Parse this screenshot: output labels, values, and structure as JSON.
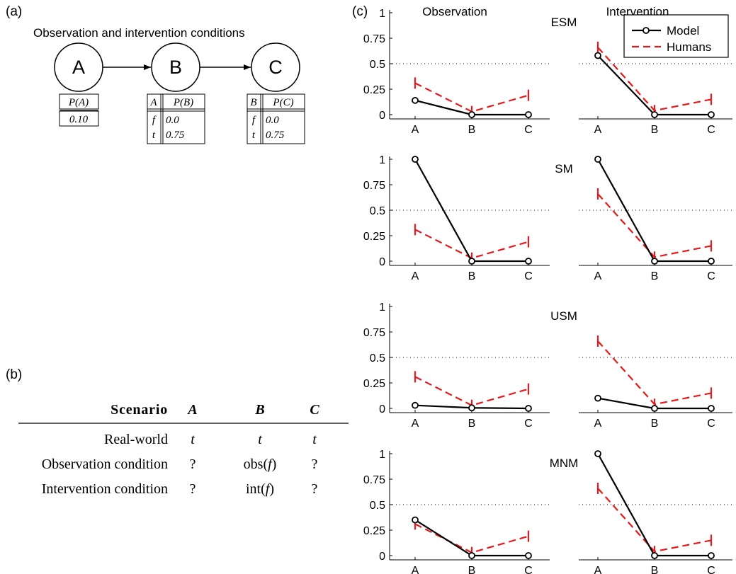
{
  "panels": {
    "a_label": "(a)",
    "b_label": "(b)",
    "c_label": "(c)"
  },
  "network": {
    "title": "Observation and intervention conditions",
    "nodes": [
      "A",
      "B",
      "C"
    ],
    "cpt_A": {
      "header": "P(A)",
      "value": "0.10"
    },
    "cpt_B": {
      "h1": "A",
      "h2": "P(B)",
      "r1a": "f",
      "r1b": "0.0",
      "r2a": "t",
      "r2b": "0.75"
    },
    "cpt_C": {
      "h1": "B",
      "h2": "P(C)",
      "r1a": "f",
      "r1b": "0.0",
      "r2a": "t",
      "r2b": "0.75"
    }
  },
  "scenario_table": {
    "headers": [
      "Scenario",
      "A",
      "B",
      "C"
    ],
    "rows": [
      {
        "name": "Real-world",
        "A": "t",
        "B_pre": "t",
        "B_var": "",
        "B_post": "",
        "C": "t"
      },
      {
        "name": "Observation condition",
        "A": "?",
        "B_pre": "obs(",
        "B_var": "f",
        "B_post": ")",
        "C": "?"
      },
      {
        "name": "Intervention condition",
        "A": "?",
        "B_pre": "int(",
        "B_var": "f",
        "B_post": ")",
        "C": "?"
      }
    ]
  },
  "chart_headers": {
    "observation": "Observation",
    "intervention": "Intervention"
  },
  "legend": {
    "model": "Model",
    "humans": "Humans"
  },
  "colors": {
    "model": "#000000",
    "humans": "#e41a1c"
  },
  "chart_data": [
    {
      "type": "line",
      "title": "ESM",
      "categories": [
        "A",
        "B",
        "C"
      ],
      "yticks": [
        "0",
        "0.25",
        "0.5",
        "0.75",
        "1"
      ],
      "ylim": [
        0,
        1
      ],
      "reference_line": 0.5,
      "observation": {
        "model": [
          0.14,
          0.0,
          0.0
        ],
        "humans": [
          0.31,
          0.03,
          0.19
        ]
      },
      "intervention": {
        "model": [
          0.58,
          0.0,
          0.0
        ],
        "humans": [
          0.66,
          0.04,
          0.15
        ]
      }
    },
    {
      "type": "line",
      "title": "SM",
      "categories": [
        "A",
        "B",
        "C"
      ],
      "yticks": [
        "0",
        "0.25",
        "0.5",
        "0.75",
        "1"
      ],
      "ylim": [
        0,
        1
      ],
      "reference_line": 0.5,
      "observation": {
        "model": [
          1.0,
          0.0,
          0.0
        ],
        "humans": [
          0.31,
          0.03,
          0.19
        ]
      },
      "intervention": {
        "model": [
          1.0,
          0.0,
          0.0
        ],
        "humans": [
          0.66,
          0.04,
          0.15
        ]
      }
    },
    {
      "type": "line",
      "title": "USM",
      "categories": [
        "A",
        "B",
        "C"
      ],
      "yticks": [
        "0",
        "0.25",
        "0.5",
        "0.75",
        "1"
      ],
      "ylim": [
        0,
        1
      ],
      "reference_line": 0.5,
      "observation": {
        "model": [
          0.03,
          0.005,
          0.0
        ],
        "humans": [
          0.31,
          0.03,
          0.19
        ]
      },
      "intervention": {
        "model": [
          0.1,
          0.0,
          0.0
        ],
        "humans": [
          0.66,
          0.04,
          0.15
        ]
      }
    },
    {
      "type": "line",
      "title": "MNM",
      "categories": [
        "A",
        "B",
        "C"
      ],
      "yticks": [
        "0",
        "0.25",
        "0.5",
        "0.75",
        "1"
      ],
      "ylim": [
        0,
        1
      ],
      "reference_line": 0.5,
      "observation": {
        "model": [
          0.35,
          0.0,
          0.0
        ],
        "humans": [
          0.31,
          0.03,
          0.19
        ]
      },
      "intervention": {
        "model": [
          1.0,
          0.0,
          0.0
        ],
        "humans": [
          0.66,
          0.04,
          0.15
        ]
      }
    }
  ]
}
